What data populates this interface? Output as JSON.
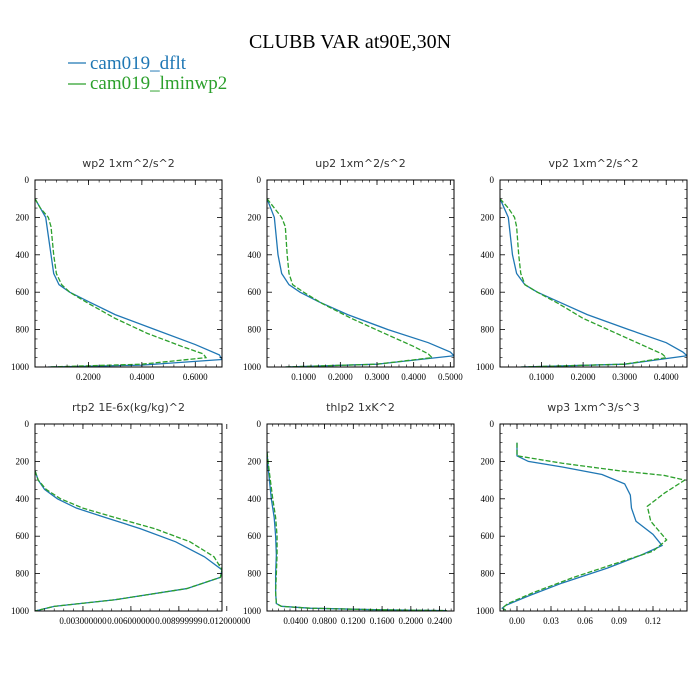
{
  "figure": {
    "title": "CLUBB VAR at90E,30N",
    "legend": [
      {
        "name": "cam019_dflt",
        "color": "#1f77b4"
      },
      {
        "name": "cam019_lminwp2",
        "color": "#2ca02c"
      }
    ]
  },
  "chart_data": [
    {
      "type": "line",
      "title": "wp2   1xm^2/s^2",
      "xlim": [
        0.0,
        0.7
      ],
      "ylim": [
        1000,
        0
      ],
      "xticks": [
        0.2,
        0.4,
        0.6
      ],
      "xtick_labels": [
        "0.2000",
        "0.4000",
        "0.6000"
      ],
      "yticks": [
        0,
        200,
        400,
        600,
        800,
        1000
      ],
      "series": [
        {
          "name": "cam019_dflt",
          "x": [
            0.0,
            0.02,
            0.04,
            0.05,
            0.06,
            0.07,
            0.09,
            0.13,
            0.2,
            0.3,
            0.45,
            0.6,
            0.69,
            0.7,
            0.4,
            0.05
          ],
          "y": [
            100,
            150,
            200,
            300,
            400,
            500,
            560,
            600,
            650,
            720,
            800,
            880,
            935,
            960,
            990,
            1000
          ]
        },
        {
          "name": "cam019_lminwp2",
          "x": [
            0.0,
            0.02,
            0.05,
            0.06,
            0.07,
            0.08,
            0.1,
            0.13,
            0.2,
            0.3,
            0.42,
            0.55,
            0.63,
            0.64,
            0.4,
            0.05
          ],
          "y": [
            100,
            150,
            200,
            250,
            400,
            500,
            560,
            600,
            660,
            740,
            820,
            890,
            930,
            950,
            985,
            1000
          ]
        }
      ]
    },
    {
      "type": "line",
      "title": "up2   1xm^2/s^2",
      "xlim": [
        0.0,
        0.51
      ],
      "ylim": [
        1000,
        0
      ],
      "xticks": [
        0.1,
        0.2,
        0.3,
        0.4,
        0.5
      ],
      "xtick_labels": [
        "0.1000",
        "0.2000",
        "0.3000",
        "0.4000",
        "0.5000"
      ],
      "yticks": [
        0,
        200,
        400,
        600,
        800,
        1000
      ],
      "series": [
        {
          "name": "cam019_dflt",
          "x": [
            0.0,
            0.01,
            0.02,
            0.025,
            0.03,
            0.04,
            0.06,
            0.09,
            0.14,
            0.22,
            0.33,
            0.44,
            0.5,
            0.51,
            0.3,
            0.05
          ],
          "y": [
            100,
            150,
            200,
            300,
            400,
            500,
            560,
            600,
            650,
            720,
            800,
            870,
            920,
            940,
            985,
            1000
          ]
        },
        {
          "name": "cam019_lminwp2",
          "x": [
            0.0,
            0.02,
            0.04,
            0.05,
            0.055,
            0.06,
            0.07,
            0.1,
            0.15,
            0.23,
            0.32,
            0.4,
            0.44,
            0.45,
            0.3,
            0.05
          ],
          "y": [
            100,
            150,
            200,
            250,
            400,
            500,
            560,
            600,
            660,
            740,
            820,
            890,
            930,
            950,
            985,
            1000
          ]
        }
      ]
    },
    {
      "type": "line",
      "title": "vp2   1xm^2/s^2",
      "xlim": [
        0.0,
        0.45
      ],
      "ylim": [
        1000,
        0
      ],
      "xticks": [
        0.1,
        0.2,
        0.3,
        0.4
      ],
      "xtick_labels": [
        "0.1000",
        "0.2000",
        "0.3000",
        "0.4000"
      ],
      "yticks": [
        0,
        200,
        400,
        600,
        800,
        1000
      ],
      "series": [
        {
          "name": "cam019_dflt",
          "x": [
            0.0,
            0.01,
            0.02,
            0.025,
            0.03,
            0.04,
            0.06,
            0.09,
            0.14,
            0.21,
            0.31,
            0.4,
            0.44,
            0.45,
            0.3,
            0.05
          ],
          "y": [
            100,
            150,
            200,
            300,
            400,
            500,
            560,
            600,
            650,
            720,
            800,
            870,
            920,
            940,
            985,
            1000
          ]
        },
        {
          "name": "cam019_lminwp2",
          "x": [
            0.0,
            0.02,
            0.035,
            0.04,
            0.045,
            0.05,
            0.06,
            0.09,
            0.14,
            0.2,
            0.28,
            0.35,
            0.39,
            0.4,
            0.3,
            0.05
          ],
          "y": [
            100,
            150,
            200,
            250,
            400,
            500,
            560,
            600,
            660,
            740,
            820,
            890,
            930,
            950,
            985,
            1000
          ]
        }
      ]
    },
    {
      "type": "line",
      "title": "rtp2   1E-6x(kg/kg)^2",
      "xlim": [
        0.0,
        0.0117
      ],
      "ylim": [
        1000,
        0
      ],
      "xticks": [
        0.003,
        0.006,
        0.009,
        0.012
      ],
      "xtick_labels": [
        "0.003000000",
        "0.006000000",
        "0.008999999",
        "0.012000000"
      ],
      "yticks": [
        0,
        200,
        400,
        600,
        800,
        1000
      ],
      "series": [
        {
          "name": "cam019_dflt",
          "x": [
            0.0,
            0.0002,
            0.0006,
            0.0014,
            0.0026,
            0.0044,
            0.0066,
            0.0088,
            0.0106,
            0.0117,
            0.0116,
            0.0095,
            0.005,
            0.0012,
            0.0
          ],
          "y": [
            250,
            300,
            350,
            400,
            450,
            500,
            560,
            630,
            710,
            780,
            820,
            880,
            940,
            975,
            1000
          ]
        },
        {
          "name": "cam019_lminwp2",
          "x": [
            0.0,
            0.0002,
            0.0007,
            0.0016,
            0.003,
            0.005,
            0.0075,
            0.0097,
            0.0112,
            0.0117,
            0.0116,
            0.0095,
            0.005,
            0.0012,
            0.0
          ],
          "y": [
            250,
            300,
            350,
            400,
            450,
            500,
            560,
            630,
            710,
            780,
            820,
            880,
            940,
            975,
            1000
          ]
        }
      ]
    },
    {
      "type": "line",
      "title": "thlp2   1xK^2",
      "xlim": [
        0.0,
        0.26
      ],
      "ylim": [
        1000,
        0
      ],
      "xticks": [
        0.04,
        0.08,
        0.12,
        0.16,
        0.2,
        0.24
      ],
      "xtick_labels": [
        "0.0400",
        "0.0800",
        "0.1200",
        "0.1600",
        "0.2000",
        "0.2400"
      ],
      "yticks": [
        0,
        200,
        400,
        600,
        800,
        1000
      ],
      "series": [
        {
          "name": "cam019_dflt",
          "x": [
            0.0,
            0.002,
            0.006,
            0.01,
            0.012,
            0.013,
            0.012,
            0.012,
            0.013,
            0.02,
            0.06,
            0.15,
            0.25
          ],
          "y": [
            150,
            250,
            400,
            500,
            600,
            700,
            800,
            900,
            960,
            975,
            985,
            993,
            998
          ]
        },
        {
          "name": "cam019_lminwp2",
          "x": [
            0.0,
            0.003,
            0.008,
            0.012,
            0.014,
            0.014,
            0.013,
            0.012,
            0.013,
            0.02,
            0.06,
            0.15,
            0.25
          ],
          "y": [
            150,
            250,
            400,
            500,
            600,
            700,
            800,
            900,
            960,
            975,
            985,
            993,
            998
          ]
        }
      ]
    },
    {
      "type": "line",
      "title": "wp3   1xm^3/s^3",
      "xlim": [
        -0.015,
        0.15
      ],
      "ylim": [
        1000,
        0
      ],
      "xticks": [
        0.0,
        0.03,
        0.06,
        0.09,
        0.12
      ],
      "xtick_labels": [
        "0.00",
        "0.03",
        "0.06",
        "0.09",
        "0.12"
      ],
      "yticks": [
        0,
        200,
        400,
        600,
        800,
        1000
      ],
      "series": [
        {
          "name": "cam019_dflt",
          "x": [
            0.0,
            0.0,
            0.01,
            0.04,
            0.075,
            0.095,
            0.1,
            0.101,
            0.105,
            0.12,
            0.128,
            0.11,
            0.08,
            0.04,
            0.01,
            -0.01,
            -0.013,
            -0.01
          ],
          "y": [
            100,
            170,
            200,
            230,
            270,
            320,
            380,
            450,
            520,
            590,
            650,
            700,
            770,
            850,
            920,
            970,
            985,
            995
          ]
        },
        {
          "name": "cam019_lminwp2",
          "x": [
            0.0,
            0.0,
            0.04,
            0.09,
            0.13,
            0.148,
            0.13,
            0.115,
            0.118,
            0.132,
            0.12,
            0.09,
            0.05,
            0.015,
            -0.008,
            -0.013,
            -0.01
          ],
          "y": [
            100,
            170,
            210,
            250,
            275,
            300,
            370,
            440,
            520,
            620,
            680,
            740,
            820,
            900,
            960,
            985,
            995
          ]
        }
      ]
    }
  ]
}
